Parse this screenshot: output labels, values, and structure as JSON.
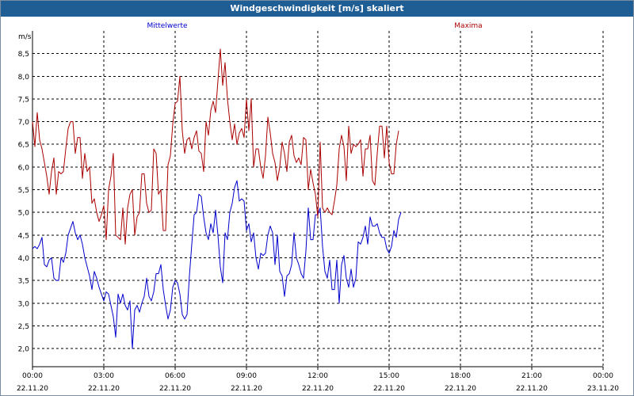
{
  "window": {
    "title": "Windgeschwindigkeit [m/s] skaliert"
  },
  "chart_data": {
    "type": "line",
    "title": "Windgeschwindigkeit [m/s] skaliert",
    "ylabel": "m/s",
    "xlabel": "",
    "ylim": [
      1.6,
      9.0
    ],
    "xlim_hours": [
      0,
      24
    ],
    "y_ticks": [
      "2,0",
      "2,5",
      "3,0",
      "3,5",
      "4,0",
      "4,5",
      "5,0",
      "5,5",
      "6,0",
      "6,5",
      "7,0",
      "7,5",
      "8,0",
      "8,5"
    ],
    "x_ticks": [
      {
        "time": "00:00",
        "date": "22.11.20"
      },
      {
        "time": "03:00",
        "date": "22.11.20"
      },
      {
        "time": "06:00",
        "date": "22.11.20"
      },
      {
        "time": "09:00",
        "date": "22.11.20"
      },
      {
        "time": "12:00",
        "date": "22.11.20"
      },
      {
        "time": "15:00",
        "date": "22.11.20"
      },
      {
        "time": "18:00",
        "date": "22.11.20"
      },
      {
        "time": "21:00",
        "date": "22.11.20"
      },
      {
        "time": "00:00",
        "date": "23.11.20"
      }
    ],
    "grid": true,
    "series": [
      {
        "name": "Mittelwerte",
        "color": "#0000cc",
        "x_step_hours": 0.1,
        "values": [
          4.2,
          4.25,
          4.2,
          4.3,
          4.45,
          3.85,
          3.8,
          3.95,
          4.0,
          3.55,
          3.5,
          3.5,
          4.0,
          3.9,
          4.1,
          4.5,
          4.65,
          4.8,
          4.55,
          4.4,
          4.5,
          4.3,
          4.0,
          3.8,
          3.6,
          3.3,
          3.7,
          3.55,
          3.35,
          3.2,
          3.05,
          3.25,
          3.2,
          2.95,
          2.7,
          2.25,
          3.2,
          3.0,
          3.2,
          2.95,
          2.85,
          3.05,
          2.0,
          2.85,
          2.95,
          2.8,
          3.0,
          3.15,
          3.55,
          3.15,
          3.05,
          3.25,
          3.65,
          3.65,
          3.85,
          3.3,
          2.95,
          2.65,
          2.85,
          3.35,
          3.5,
          3.45,
          3.2,
          2.75,
          2.65,
          2.75,
          3.6,
          4.3,
          4.95,
          5.0,
          5.4,
          5.35,
          4.9,
          4.55,
          4.4,
          4.75,
          4.55,
          5.05,
          4.5,
          3.8,
          3.45,
          4.55,
          4.4,
          5.0,
          5.2,
          5.55,
          5.7,
          5.25,
          5.3,
          5.25,
          4.6,
          4.75,
          4.35,
          4.55,
          4.0,
          3.75,
          4.1,
          4.05,
          4.1,
          4.5,
          4.7,
          4.55,
          3.85,
          4.5,
          3.7,
          3.6,
          3.15,
          3.6,
          3.65,
          3.85,
          4.55,
          4.0,
          3.85,
          3.65,
          3.55,
          4.15,
          5.1,
          4.4,
          4.4,
          4.95,
          4.95,
          5.1,
          4.25,
          3.7,
          3.55,
          3.95,
          3.3,
          3.3,
          3.95,
          3.0,
          3.85,
          4.05,
          3.55,
          3.35,
          3.75,
          3.35,
          3.55,
          4.35,
          4.3,
          4.45,
          4.7,
          4.3,
          4.9,
          4.7,
          4.7,
          4.75,
          4.55,
          4.45,
          4.45,
          4.2,
          4.1,
          4.25,
          4.6,
          4.45,
          4.85,
          5.0
        ]
      },
      {
        "name": "Maxima",
        "color": "#aa0000",
        "x_step_hours": 0.1,
        "values": [
          7.0,
          6.45,
          7.2,
          6.6,
          6.4,
          6.1,
          5.8,
          5.4,
          5.9,
          6.2,
          5.4,
          5.9,
          5.85,
          5.9,
          6.4,
          6.85,
          7.0,
          7.0,
          6.3,
          6.65,
          6.65,
          5.75,
          6.3,
          5.9,
          6.0,
          5.2,
          5.3,
          5.0,
          4.8,
          4.95,
          5.15,
          4.4,
          5.5,
          5.8,
          6.3,
          4.5,
          4.45,
          4.4,
          5.1,
          4.3,
          5.1,
          5.4,
          5.5,
          4.5,
          4.9,
          5.0,
          5.85,
          5.85,
          5.2,
          5.0,
          5.05,
          6.4,
          6.3,
          5.4,
          5.5,
          4.6,
          4.6,
          6.05,
          6.25,
          6.95,
          7.4,
          7.45,
          8.0,
          6.8,
          6.3,
          6.6,
          6.65,
          6.4,
          6.65,
          6.8,
          6.35,
          6.3,
          5.9,
          7.0,
          6.7,
          7.25,
          7.45,
          7.2,
          7.9,
          8.6,
          7.8,
          8.3,
          7.5,
          7.0,
          6.6,
          6.95,
          6.5,
          6.75,
          6.85,
          6.65,
          7.5,
          6.8,
          7.5,
          6.0,
          6.4,
          6.4,
          6.0,
          5.75,
          6.25,
          7.1,
          6.75,
          6.3,
          6.1,
          5.7,
          6.0,
          6.55,
          6.3,
          5.9,
          6.55,
          6.7,
          6.25,
          6.1,
          6.2,
          6.05,
          6.65,
          6.6,
          5.5,
          5.95,
          5.65,
          5.4,
          4.9,
          6.55,
          5.1,
          5.0,
          5.1,
          5.0,
          4.95,
          5.25,
          5.6,
          6.4,
          6.7,
          6.45,
          5.7,
          6.9,
          6.3,
          6.5,
          6.45,
          6.5,
          6.6,
          5.8,
          6.4,
          6.4,
          6.7,
          5.7,
          5.6,
          6.3,
          6.9,
          6.9,
          6.2,
          6.9,
          6.1,
          5.85,
          5.85,
          6.5,
          6.8
        ]
      }
    ]
  }
}
